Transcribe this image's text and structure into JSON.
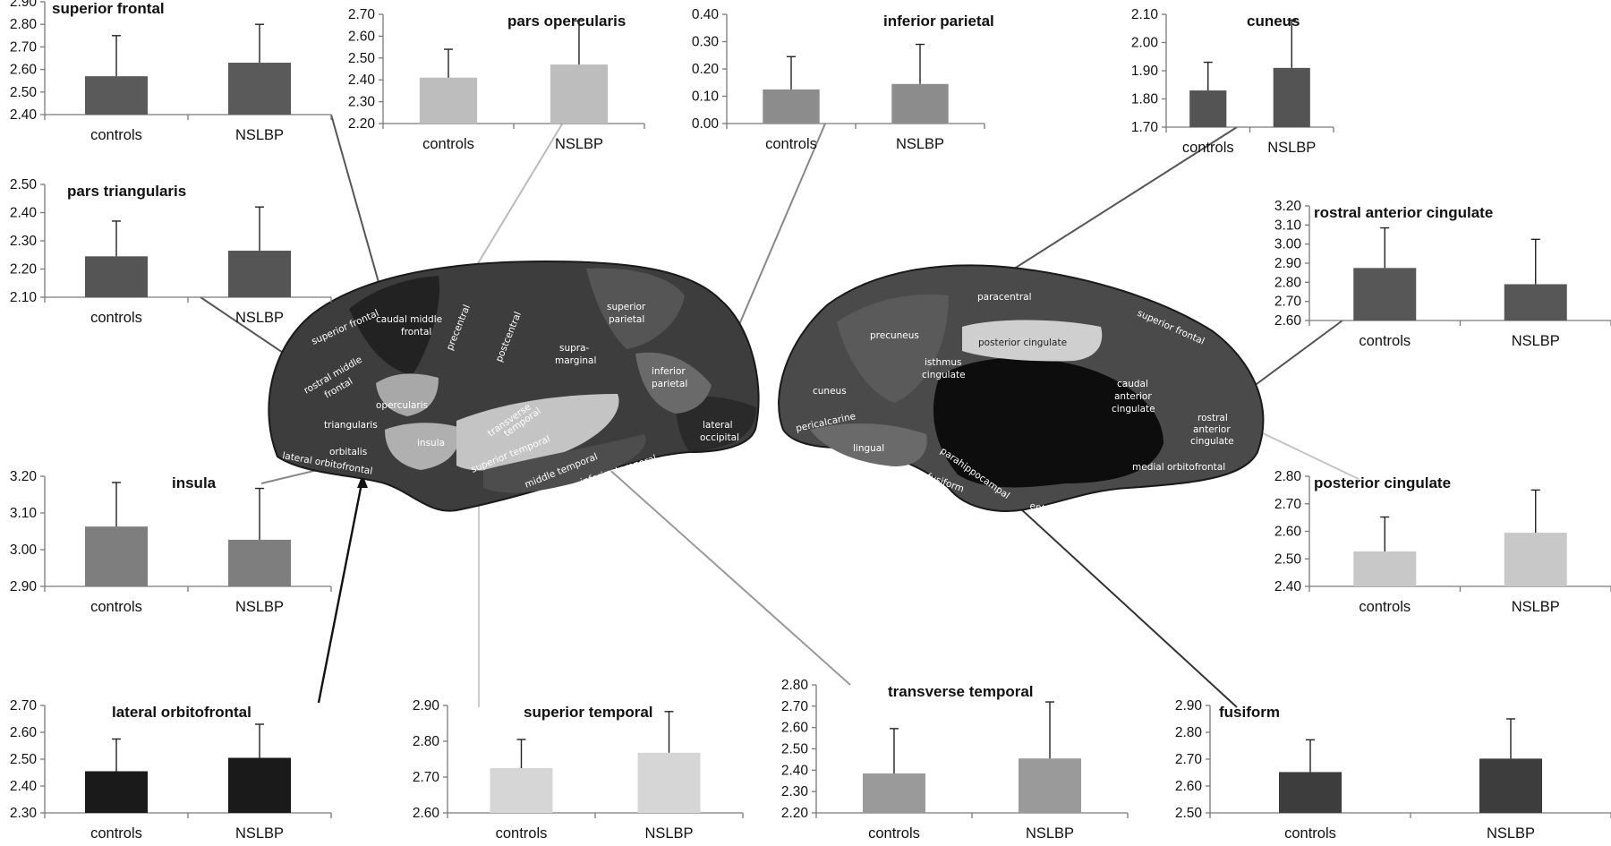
{
  "chart_data": [
    {
      "id": "superior-frontal",
      "type": "bar",
      "title": "superior frontal",
      "categories": [
        "controls",
        "NSLBP"
      ],
      "values": [
        2.57,
        2.63
      ],
      "errors": [
        0.18,
        0.17
      ],
      "ylim": [
        2.4,
        2.9
      ],
      "yticks": [
        "2.40",
        "2.50",
        "2.60",
        "2.70",
        "2.80",
        "2.90"
      ],
      "color": "#5a5a5a"
    },
    {
      "id": "pars-opercularis",
      "type": "bar",
      "title": "pars opercularis",
      "categories": [
        "controls",
        "NSLBP"
      ],
      "values": [
        2.41,
        2.47
      ],
      "errors": [
        0.13,
        0.2
      ],
      "ylim": [
        2.2,
        2.7
      ],
      "yticks": [
        "2.20",
        "2.30",
        "2.40",
        "2.50",
        "2.60",
        "2.70"
      ],
      "color": "#bdbdbd"
    },
    {
      "id": "inferior-parietal",
      "type": "bar",
      "title": "inferior parietal",
      "categories": [
        "controls",
        "NSLBP"
      ],
      "values": [
        0.125,
        0.145
      ],
      "errors": [
        0.12,
        0.145
      ],
      "ylim": [
        0.0,
        0.4
      ],
      "yticks": [
        "0.00",
        "0.10",
        "0.20",
        "0.30",
        "0.40"
      ],
      "color": "#8c8c8c"
    },
    {
      "id": "cuneus",
      "type": "bar",
      "title": "cuneus",
      "categories": [
        "controls",
        "NSLBP"
      ],
      "values": [
        1.83,
        1.91
      ],
      "errors": [
        0.1,
        0.17
      ],
      "ylim": [
        1.7,
        2.1
      ],
      "yticks": [
        "1.70",
        "1.80",
        "1.90",
        "2.00",
        "2.10"
      ],
      "color": "#545454"
    },
    {
      "id": "pars-triangularis",
      "type": "bar",
      "title": "pars triangularis",
      "categories": [
        "controls",
        "NSLBP"
      ],
      "values": [
        2.245,
        2.265
      ],
      "errors": [
        0.125,
        0.155
      ],
      "ylim": [
        2.1,
        2.5
      ],
      "yticks": [
        "2.10",
        "2.20",
        "2.30",
        "2.40",
        "2.50"
      ],
      "color": "#555555"
    },
    {
      "id": "rostral-anterior-cingulate",
      "type": "bar",
      "title": "rostral anterior cingulate",
      "categories": [
        "controls",
        "NSLBP"
      ],
      "values": [
        2.875,
        2.79
      ],
      "errors": [
        0.21,
        0.235
      ],
      "ylim": [
        2.6,
        3.2
      ],
      "yticks": [
        "2.60",
        "2.70",
        "2.80",
        "2.90",
        "3.00",
        "3.10",
        "3.20"
      ],
      "color": "#575757"
    },
    {
      "id": "insula",
      "type": "bar",
      "title": "insula",
      "categories": [
        "controls",
        "NSLBP"
      ],
      "values": [
        3.063,
        3.027
      ],
      "errors": [
        0.12,
        0.14
      ],
      "ylim": [
        2.9,
        3.2
      ],
      "yticks": [
        "2.90",
        "3.00",
        "3.10",
        "3.20"
      ],
      "color": "#7e7e7e"
    },
    {
      "id": "posterior-cingulate",
      "type": "bar",
      "title": "posterior cingulate",
      "categories": [
        "controls",
        "NSLBP"
      ],
      "values": [
        2.527,
        2.595
      ],
      "errors": [
        0.125,
        0.155
      ],
      "ylim": [
        2.4,
        2.8
      ],
      "yticks": [
        "2.40",
        "2.50",
        "2.60",
        "2.70",
        "2.80"
      ],
      "color": "#c8c8c8"
    },
    {
      "id": "lateral-orbitofrontal",
      "type": "bar",
      "title": "lateral orbitofrontal",
      "categories": [
        "controls",
        "NSLBP"
      ],
      "values": [
        2.455,
        2.505
      ],
      "errors": [
        0.12,
        0.125
      ],
      "ylim": [
        2.3,
        2.7
      ],
      "yticks": [
        "2.30",
        "2.40",
        "2.50",
        "2.60",
        "2.70"
      ],
      "color": "#1a1a1a"
    },
    {
      "id": "superior-temporal",
      "type": "bar",
      "title": "superior temporal",
      "categories": [
        "controls",
        "NSLBP"
      ],
      "values": [
        2.725,
        2.768
      ],
      "errors": [
        0.08,
        0.115
      ],
      "ylim": [
        2.6,
        2.9
      ],
      "yticks": [
        "2.60",
        "2.70",
        "2.80",
        "2.90"
      ],
      "color": "#d6d6d6"
    },
    {
      "id": "transverse-temporal",
      "type": "bar",
      "title": "transverse temporal",
      "categories": [
        "controls",
        "NSLBP"
      ],
      "values": [
        2.385,
        2.455
      ],
      "errors": [
        0.21,
        0.265
      ],
      "ylim": [
        2.2,
        2.8
      ],
      "yticks": [
        "2.20",
        "2.30",
        "2.40",
        "2.50",
        "2.60",
        "2.70",
        "2.80"
      ],
      "color": "#9a9a9a"
    },
    {
      "id": "fusiform",
      "type": "bar",
      "title": "fusiform",
      "categories": [
        "controls",
        "NSLBP"
      ],
      "values": [
        2.652,
        2.702
      ],
      "errors": [
        0.12,
        0.148
      ],
      "ylim": [
        2.5,
        2.9
      ],
      "yticks": [
        "2.50",
        "2.60",
        "2.70",
        "2.80",
        "2.90"
      ],
      "color": "#3d3d3d"
    }
  ],
  "brain_regions": {
    "lateral": [
      "superior frontal",
      "caudal middle frontal",
      "rostral middle frontal",
      "precentral",
      "postcentral",
      "superior parietal",
      "supra-marginal",
      "inferior parietal",
      "opercularis",
      "triangularis",
      "orbitalis",
      "lateral orbitofrontal",
      "insula",
      "transverse temporal",
      "superior temporal",
      "middle temporal",
      "inferior temporal",
      "lateral occipital"
    ],
    "medial": [
      "paracentral",
      "precuneus",
      "posterior cingulate",
      "superior frontal",
      "caudal anterior cingulate",
      "isthmus cingulate",
      "cuneus",
      "pericalcarine",
      "lingual",
      "rostral anterior cingulate",
      "parahippocampal",
      "fusiform",
      "entorhinal",
      "medial orbitofrontal"
    ]
  }
}
